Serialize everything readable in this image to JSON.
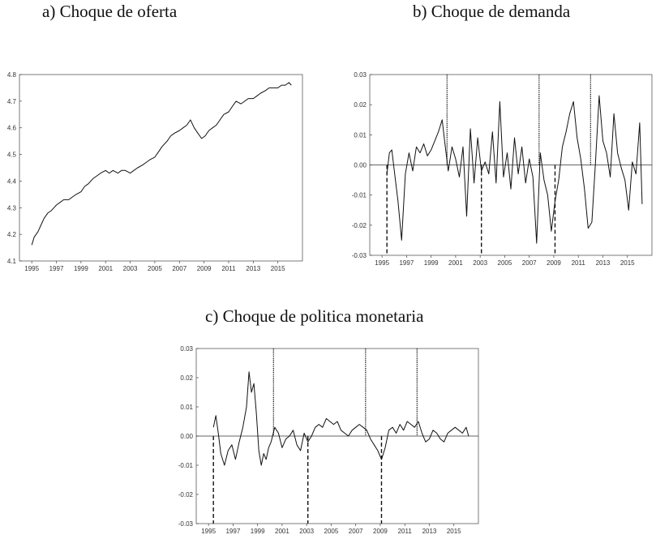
{
  "chart_data": [
    {
      "type": "line",
      "title": "a) Choque de oferta",
      "xlabel": "",
      "ylabel": "",
      "xlim": [
        1994.0,
        2017.0
      ],
      "ylim": [
        4.1,
        4.8
      ],
      "xticks": [
        "1995",
        "1997",
        "1999",
        "2001",
        "2003",
        "2005",
        "2007",
        "2009",
        "2011",
        "2013",
        "2015"
      ],
      "yticks": [
        "4.1",
        "4.2",
        "4.3",
        "4.4",
        "4.5",
        "4.6",
        "4.7",
        "4.8"
      ],
      "grid": false,
      "zero_line": false,
      "series": [
        {
          "x": [
            1995.0,
            1995.2,
            1995.5,
            1995.8,
            1996.0,
            1996.3,
            1996.6,
            1997.0,
            1997.3,
            1997.6,
            1998.0,
            1998.3,
            1998.6,
            1999.0,
            1999.3,
            1999.6,
            2000.0,
            2000.3,
            2000.6,
            2001.0,
            2001.3,
            2001.6,
            2002.0,
            2002.3,
            2002.6,
            2003.0,
            2003.3,
            2003.6,
            2004.0,
            2004.3,
            2004.6,
            2005.0,
            2005.3,
            2005.6,
            2006.0,
            2006.3,
            2006.6,
            2007.0,
            2007.3,
            2007.6,
            2007.9,
            2008.2,
            2008.5,
            2008.8,
            2009.1,
            2009.4,
            2009.7,
            2010.0,
            2010.3,
            2010.6,
            2011.0,
            2011.3,
            2011.6,
            2012.0,
            2012.3,
            2012.6,
            2013.0,
            2013.3,
            2013.6,
            2014.0,
            2014.3,
            2014.6,
            2015.0,
            2015.3,
            2015.6,
            2015.9,
            2016.1
          ],
          "y": [
            4.16,
            4.19,
            4.21,
            4.24,
            4.26,
            4.28,
            4.29,
            4.31,
            4.32,
            4.33,
            4.33,
            4.34,
            4.35,
            4.36,
            4.38,
            4.39,
            4.41,
            4.42,
            4.43,
            4.44,
            4.43,
            4.44,
            4.43,
            4.44,
            4.44,
            4.43,
            4.44,
            4.45,
            4.46,
            4.47,
            4.48,
            4.49,
            4.51,
            4.53,
            4.55,
            4.57,
            4.58,
            4.59,
            4.6,
            4.61,
            4.63,
            4.6,
            4.58,
            4.56,
            4.57,
            4.59,
            4.6,
            4.61,
            4.63,
            4.65,
            4.66,
            4.68,
            4.7,
            4.69,
            4.7,
            4.71,
            4.71,
            4.72,
            4.73,
            4.74,
            4.75,
            4.75,
            4.75,
            4.76,
            4.76,
            4.77,
            4.76
          ]
        }
      ]
    },
    {
      "type": "line",
      "title": "b) Choque de demanda",
      "xlabel": "",
      "ylabel": "",
      "xlim": [
        1994.0,
        2017.0
      ],
      "ylim": [
        -0.03,
        0.03
      ],
      "xticks": [
        "1995",
        "1997",
        "1999",
        "2001",
        "2003",
        "2005",
        "2007",
        "2009",
        "2011",
        "2013",
        "2015"
      ],
      "yticks": [
        "-0.03",
        "-0.02",
        "-0.01",
        "0.00",
        "0.01",
        "0.02",
        "0.03"
      ],
      "grid": false,
      "zero_line": true,
      "markers_dotted": [
        2000.3,
        2007.8,
        2012.0
      ],
      "markers_dashed": [
        1995.4,
        2003.1,
        2009.1
      ],
      "series": [
        {
          "x": [
            1995.4,
            1995.6,
            1995.8,
            1996.0,
            1996.3,
            1996.6,
            1996.9,
            1997.2,
            1997.5,
            1997.8,
            1998.1,
            1998.4,
            1998.7,
            1999.0,
            1999.3,
            1999.6,
            1999.9,
            2000.1,
            2000.4,
            2000.7,
            2001.0,
            2001.3,
            2001.6,
            2001.9,
            2002.2,
            2002.5,
            2002.8,
            2003.1,
            2003.4,
            2003.7,
            2004.0,
            2004.3,
            2004.6,
            2004.9,
            2005.2,
            2005.5,
            2005.8,
            2006.1,
            2006.4,
            2006.7,
            2007.0,
            2007.3,
            2007.6,
            2007.9,
            2008.2,
            2008.5,
            2008.8,
            2009.1,
            2009.4,
            2009.7,
            2010.0,
            2010.3,
            2010.6,
            2010.9,
            2011.2,
            2011.5,
            2011.8,
            2012.1,
            2012.4,
            2012.7,
            2013.0,
            2013.3,
            2013.6,
            2013.9,
            2014.2,
            2014.5,
            2014.8,
            2015.1,
            2015.4,
            2015.7,
            2016.0,
            2016.2
          ],
          "y": [
            -0.003,
            0.004,
            0.005,
            -0.002,
            -0.012,
            -0.025,
            -0.003,
            0.004,
            -0.002,
            0.006,
            0.004,
            0.007,
            0.003,
            0.005,
            0.008,
            0.011,
            0.015,
            0.008,
            -0.002,
            0.006,
            0.002,
            -0.004,
            0.006,
            -0.017,
            0.012,
            -0.006,
            0.009,
            -0.002,
            0.001,
            -0.003,
            0.011,
            -0.006,
            0.021,
            -0.004,
            0.004,
            -0.008,
            0.009,
            -0.003,
            0.006,
            -0.006,
            0.002,
            -0.004,
            -0.026,
            0.004,
            -0.005,
            -0.01,
            -0.022,
            -0.012,
            -0.005,
            0.006,
            0.011,
            0.017,
            0.021,
            0.009,
            0.002,
            -0.008,
            -0.021,
            -0.019,
            0.001,
            0.023,
            0.008,
            0.004,
            -0.004,
            0.017,
            0.004,
            -0.001,
            -0.005,
            -0.015,
            0.001,
            -0.003,
            0.014,
            -0.013
          ]
        }
      ]
    },
    {
      "type": "line",
      "title": "c) Choque de politica monetaria",
      "xlabel": "",
      "ylabel": "",
      "xlim": [
        1994.0,
        2017.0
      ],
      "ylim": [
        -0.03,
        0.03
      ],
      "xticks": [
        "1995",
        "1997",
        "1999",
        "2001",
        "2003",
        "2005",
        "2007",
        "2009",
        "2011",
        "2013",
        "2015"
      ],
      "yticks": [
        "-0.03",
        "-0.02",
        "-0.01",
        "0.00",
        "0.01",
        "0.02",
        "0.03"
      ],
      "grid": false,
      "zero_line": true,
      "markers_dotted": [
        2000.3,
        2007.8,
        2012.0
      ],
      "markers_dashed": [
        1995.4,
        2003.1,
        2009.1
      ],
      "series": [
        {
          "x": [
            1995.4,
            1995.6,
            1995.8,
            1996.0,
            1996.3,
            1996.6,
            1996.9,
            1997.2,
            1997.5,
            1997.8,
            1998.1,
            1998.3,
            1998.5,
            1998.7,
            1998.9,
            1999.1,
            1999.3,
            1999.5,
            1999.7,
            1999.9,
            2000.1,
            2000.4,
            2000.7,
            2001.0,
            2001.3,
            2001.6,
            2001.9,
            2002.2,
            2002.5,
            2002.8,
            2003.1,
            2003.4,
            2003.7,
            2004.0,
            2004.3,
            2004.6,
            2004.9,
            2005.2,
            2005.5,
            2005.8,
            2006.1,
            2006.4,
            2006.7,
            2007.0,
            2007.3,
            2007.6,
            2007.9,
            2008.2,
            2008.5,
            2008.8,
            2009.1,
            2009.4,
            2009.7,
            2010.0,
            2010.3,
            2010.6,
            2010.9,
            2011.2,
            2011.5,
            2011.8,
            2012.1,
            2012.4,
            2012.7,
            2013.0,
            2013.3,
            2013.6,
            2013.9,
            2014.2,
            2014.5,
            2014.8,
            2015.1,
            2015.4,
            2015.7,
            2016.0,
            2016.2
          ],
          "y": [
            0.003,
            0.007,
            0.001,
            -0.006,
            -0.01,
            -0.005,
            -0.003,
            -0.008,
            -0.002,
            0.003,
            0.01,
            0.022,
            0.015,
            0.018,
            0.008,
            -0.005,
            -0.01,
            -0.006,
            -0.008,
            -0.004,
            -0.002,
            0.003,
            0.001,
            -0.004,
            -0.001,
            0.0,
            0.002,
            -0.003,
            -0.005,
            0.001,
            -0.002,
            0.0,
            0.003,
            0.004,
            0.003,
            0.006,
            0.005,
            0.004,
            0.005,
            0.002,
            0.001,
            0.0,
            0.002,
            0.003,
            0.004,
            0.003,
            0.002,
            -0.001,
            -0.003,
            -0.005,
            -0.008,
            -0.004,
            0.002,
            0.003,
            0.001,
            0.004,
            0.002,
            0.005,
            0.004,
            0.003,
            0.005,
            0.001,
            -0.002,
            -0.001,
            0.002,
            0.001,
            -0.001,
            -0.002,
            0.001,
            0.002,
            0.003,
            0.002,
            0.001,
            0.003,
            0.0
          ]
        }
      ]
    }
  ]
}
